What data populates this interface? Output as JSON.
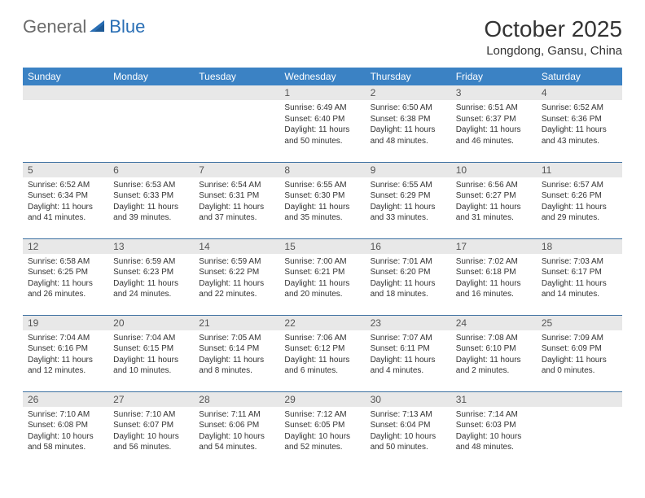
{
  "logo": {
    "general": "General",
    "blue": "Blue"
  },
  "title": "October 2025",
  "location": "Longdong, Gansu, China",
  "colors": {
    "header_bg": "#3b82c4",
    "header_text": "#ffffff",
    "daynum_bg": "#e8e8e8",
    "border": "#3b6fa0",
    "logo_gray": "#6b6b6b",
    "logo_blue": "#2a6fb5"
  },
  "weekdays": [
    "Sunday",
    "Monday",
    "Tuesday",
    "Wednesday",
    "Thursday",
    "Friday",
    "Saturday"
  ],
  "weeks": [
    [
      null,
      null,
      null,
      {
        "n": "1",
        "sr": "6:49 AM",
        "ss": "6:40 PM",
        "dl": "11 hours and 50 minutes."
      },
      {
        "n": "2",
        "sr": "6:50 AM",
        "ss": "6:38 PM",
        "dl": "11 hours and 48 minutes."
      },
      {
        "n": "3",
        "sr": "6:51 AM",
        "ss": "6:37 PM",
        "dl": "11 hours and 46 minutes."
      },
      {
        "n": "4",
        "sr": "6:52 AM",
        "ss": "6:36 PM",
        "dl": "11 hours and 43 minutes."
      }
    ],
    [
      {
        "n": "5",
        "sr": "6:52 AM",
        "ss": "6:34 PM",
        "dl": "11 hours and 41 minutes."
      },
      {
        "n": "6",
        "sr": "6:53 AM",
        "ss": "6:33 PM",
        "dl": "11 hours and 39 minutes."
      },
      {
        "n": "7",
        "sr": "6:54 AM",
        "ss": "6:31 PM",
        "dl": "11 hours and 37 minutes."
      },
      {
        "n": "8",
        "sr": "6:55 AM",
        "ss": "6:30 PM",
        "dl": "11 hours and 35 minutes."
      },
      {
        "n": "9",
        "sr": "6:55 AM",
        "ss": "6:29 PM",
        "dl": "11 hours and 33 minutes."
      },
      {
        "n": "10",
        "sr": "6:56 AM",
        "ss": "6:27 PM",
        "dl": "11 hours and 31 minutes."
      },
      {
        "n": "11",
        "sr": "6:57 AM",
        "ss": "6:26 PM",
        "dl": "11 hours and 29 minutes."
      }
    ],
    [
      {
        "n": "12",
        "sr": "6:58 AM",
        "ss": "6:25 PM",
        "dl": "11 hours and 26 minutes."
      },
      {
        "n": "13",
        "sr": "6:59 AM",
        "ss": "6:23 PM",
        "dl": "11 hours and 24 minutes."
      },
      {
        "n": "14",
        "sr": "6:59 AM",
        "ss": "6:22 PM",
        "dl": "11 hours and 22 minutes."
      },
      {
        "n": "15",
        "sr": "7:00 AM",
        "ss": "6:21 PM",
        "dl": "11 hours and 20 minutes."
      },
      {
        "n": "16",
        "sr": "7:01 AM",
        "ss": "6:20 PM",
        "dl": "11 hours and 18 minutes."
      },
      {
        "n": "17",
        "sr": "7:02 AM",
        "ss": "6:18 PM",
        "dl": "11 hours and 16 minutes."
      },
      {
        "n": "18",
        "sr": "7:03 AM",
        "ss": "6:17 PM",
        "dl": "11 hours and 14 minutes."
      }
    ],
    [
      {
        "n": "19",
        "sr": "7:04 AM",
        "ss": "6:16 PM",
        "dl": "11 hours and 12 minutes."
      },
      {
        "n": "20",
        "sr": "7:04 AM",
        "ss": "6:15 PM",
        "dl": "11 hours and 10 minutes."
      },
      {
        "n": "21",
        "sr": "7:05 AM",
        "ss": "6:14 PM",
        "dl": "11 hours and 8 minutes."
      },
      {
        "n": "22",
        "sr": "7:06 AM",
        "ss": "6:12 PM",
        "dl": "11 hours and 6 minutes."
      },
      {
        "n": "23",
        "sr": "7:07 AM",
        "ss": "6:11 PM",
        "dl": "11 hours and 4 minutes."
      },
      {
        "n": "24",
        "sr": "7:08 AM",
        "ss": "6:10 PM",
        "dl": "11 hours and 2 minutes."
      },
      {
        "n": "25",
        "sr": "7:09 AM",
        "ss": "6:09 PM",
        "dl": "11 hours and 0 minutes."
      }
    ],
    [
      {
        "n": "26",
        "sr": "7:10 AM",
        "ss": "6:08 PM",
        "dl": "10 hours and 58 minutes."
      },
      {
        "n": "27",
        "sr": "7:10 AM",
        "ss": "6:07 PM",
        "dl": "10 hours and 56 minutes."
      },
      {
        "n": "28",
        "sr": "7:11 AM",
        "ss": "6:06 PM",
        "dl": "10 hours and 54 minutes."
      },
      {
        "n": "29",
        "sr": "7:12 AM",
        "ss": "6:05 PM",
        "dl": "10 hours and 52 minutes."
      },
      {
        "n": "30",
        "sr": "7:13 AM",
        "ss": "6:04 PM",
        "dl": "10 hours and 50 minutes."
      },
      {
        "n": "31",
        "sr": "7:14 AM",
        "ss": "6:03 PM",
        "dl": "10 hours and 48 minutes."
      },
      null
    ]
  ],
  "labels": {
    "sunrise": "Sunrise:",
    "sunset": "Sunset:",
    "daylight": "Daylight:"
  }
}
